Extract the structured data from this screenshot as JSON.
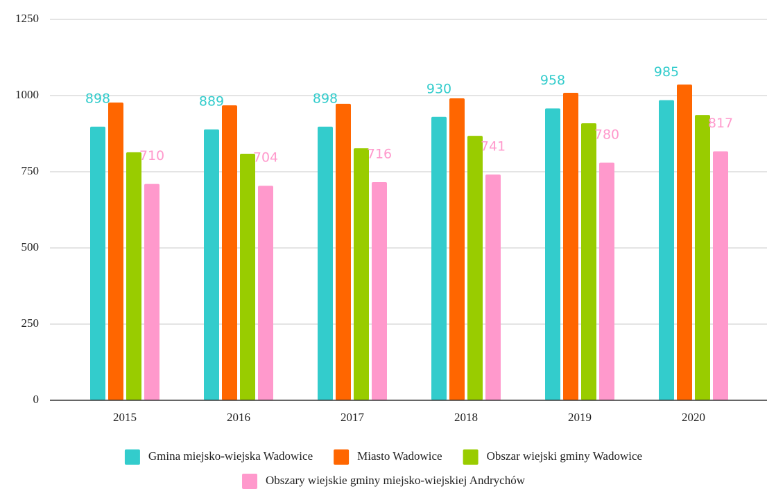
{
  "chart_data": {
    "type": "bar",
    "categories": [
      "2015",
      "2016",
      "2017",
      "2018",
      "2019",
      "2020"
    ],
    "series": [
      {
        "name": "Gmina miejsko-wiejska Wadowice",
        "color": "#33cccc",
        "values": [
          898,
          889,
          898,
          930,
          958,
          985
        ],
        "data_labels": true
      },
      {
        "name": "Miasto Wadowice",
        "color": "#ff6600",
        "values": [
          977,
          968,
          973,
          991,
          1009,
          1036
        ],
        "data_labels": false
      },
      {
        "name": "Obszar wiejski gminy Wadowice",
        "color": "#99cc00",
        "values": [
          814,
          809,
          827,
          868,
          909,
          936
        ],
        "data_labels": false
      },
      {
        "name": "Obszary wiejskie gminy miejsko-wiejskiej Andrychów",
        "color": "#ff99cc",
        "values": [
          710,
          704,
          716,
          741,
          780,
          817
        ],
        "data_labels": true
      }
    ],
    "ylim": [
      0,
      1250
    ],
    "yticks": [
      0,
      250,
      500,
      750,
      1000,
      1250
    ],
    "grid": true,
    "legend": "bottom"
  }
}
